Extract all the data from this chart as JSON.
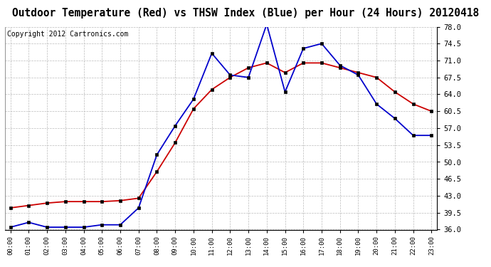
{
  "title": "Outdoor Temperature (Red) vs THSW Index (Blue) per Hour (24 Hours) 20120418",
  "copyright": "Copyright 2012 Cartronics.com",
  "hours": [
    0,
    1,
    2,
    3,
    4,
    5,
    6,
    7,
    8,
    9,
    10,
    11,
    12,
    13,
    14,
    15,
    16,
    17,
    18,
    19,
    20,
    21,
    22,
    23
  ],
  "red_temp": [
    40.5,
    41.0,
    41.5,
    41.8,
    41.8,
    41.8,
    42.0,
    42.5,
    48.0,
    54.0,
    61.0,
    65.0,
    67.5,
    69.5,
    70.5,
    68.5,
    70.5,
    70.5,
    69.5,
    68.5,
    67.5,
    64.5,
    62.0,
    60.5
  ],
  "blue_thsw": [
    36.5,
    37.5,
    36.5,
    36.5,
    36.5,
    37.0,
    37.0,
    40.5,
    51.5,
    57.5,
    63.0,
    72.5,
    68.0,
    67.5,
    78.5,
    64.5,
    73.5,
    74.5,
    70.0,
    68.0,
    62.0,
    59.0,
    55.5,
    55.5
  ],
  "ylim": [
    36.0,
    78.0
  ],
  "yticks": [
    36.0,
    39.5,
    43.0,
    46.5,
    50.0,
    53.5,
    57.0,
    60.5,
    64.0,
    67.5,
    71.0,
    74.5,
    78.0
  ],
  "red_color": "#cc0000",
  "blue_color": "#0000cc",
  "bg_color": "#ffffff",
  "grid_color": "#bbbbbb",
  "title_fontsize": 10.5,
  "copyright_fontsize": 7
}
